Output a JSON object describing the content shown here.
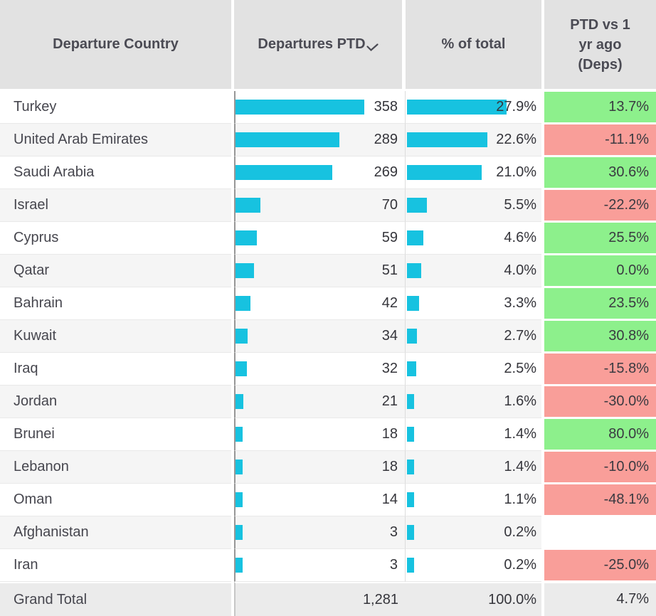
{
  "colors": {
    "bar": "#17C2E0",
    "positive": "#8DF08C",
    "negative": "#F99E99",
    "header_bg": "#E2E2E2",
    "row_alt_bg": "#F5F5F5",
    "grand_total_bg": "#EBEBEB",
    "axis_line": "#979797"
  },
  "table": {
    "columns": [
      {
        "label": "Departure Country"
      },
      {
        "label": "Departures PTD",
        "sort_indicator": "descending"
      },
      {
        "label": "% of total"
      },
      {
        "label": "PTD vs 1\nyr ago\n(Deps)"
      }
    ],
    "rows": [
      {
        "country": "Turkey",
        "departures": "358",
        "departures_value": 358,
        "pct_of_total": "27.9%",
        "pct_value": 27.9,
        "vs_1yr": "13.7%",
        "trend": "positive"
      },
      {
        "country": "United Arab Emirates",
        "departures": "289",
        "departures_value": 289,
        "pct_of_total": "22.6%",
        "pct_value": 22.6,
        "vs_1yr": "-11.1%",
        "trend": "negative"
      },
      {
        "country": "Saudi Arabia",
        "departures": "269",
        "departures_value": 269,
        "pct_of_total": "21.0%",
        "pct_value": 21.0,
        "vs_1yr": "30.6%",
        "trend": "positive"
      },
      {
        "country": "Israel",
        "departures": "70",
        "departures_value": 70,
        "pct_of_total": "5.5%",
        "pct_value": 5.5,
        "vs_1yr": "-22.2%",
        "trend": "negative"
      },
      {
        "country": "Cyprus",
        "departures": "59",
        "departures_value": 59,
        "pct_of_total": "4.6%",
        "pct_value": 4.6,
        "vs_1yr": "25.5%",
        "trend": "positive"
      },
      {
        "country": "Qatar",
        "departures": "51",
        "departures_value": 51,
        "pct_of_total": "4.0%",
        "pct_value": 4.0,
        "vs_1yr": "0.0%",
        "trend": "positive"
      },
      {
        "country": "Bahrain",
        "departures": "42",
        "departures_value": 42,
        "pct_of_total": "3.3%",
        "pct_value": 3.3,
        "vs_1yr": "23.5%",
        "trend": "positive"
      },
      {
        "country": "Kuwait",
        "departures": "34",
        "departures_value": 34,
        "pct_of_total": "2.7%",
        "pct_value": 2.7,
        "vs_1yr": "30.8%",
        "trend": "positive"
      },
      {
        "country": "Iraq",
        "departures": "32",
        "departures_value": 32,
        "pct_of_total": "2.5%",
        "pct_value": 2.5,
        "vs_1yr": "-15.8%",
        "trend": "negative"
      },
      {
        "country": "Jordan",
        "departures": "21",
        "departures_value": 21,
        "pct_of_total": "1.6%",
        "pct_value": 1.6,
        "vs_1yr": "-30.0%",
        "trend": "negative"
      },
      {
        "country": "Brunei",
        "departures": "18",
        "departures_value": 18,
        "pct_of_total": "1.4%",
        "pct_value": 1.4,
        "vs_1yr": "80.0%",
        "trend": "positive"
      },
      {
        "country": "Lebanon",
        "departures": "18",
        "departures_value": 18,
        "pct_of_total": "1.4%",
        "pct_value": 1.4,
        "vs_1yr": "-10.0%",
        "trend": "negative"
      },
      {
        "country": "Oman",
        "departures": "14",
        "departures_value": 14,
        "pct_of_total": "1.1%",
        "pct_value": 1.1,
        "vs_1yr": "-48.1%",
        "trend": "negative"
      },
      {
        "country": "Afghanistan",
        "departures": "3",
        "departures_value": 3,
        "pct_of_total": "0.2%",
        "pct_value": 0.2,
        "vs_1yr": "",
        "trend": "none"
      },
      {
        "country": "Iran",
        "departures": "3",
        "departures_value": 3,
        "pct_of_total": "0.2%",
        "pct_value": 0.2,
        "vs_1yr": "-25.0%",
        "trend": "negative"
      }
    ],
    "grand_total": {
      "label": "Grand Total",
      "departures": "1,281",
      "pct_of_total": "100.0%",
      "vs_1yr": "4.7%"
    }
  },
  "chart_data": {
    "type": "table",
    "title": "Departures by Departure Country",
    "columns": [
      "Departure Country",
      "Departures PTD",
      "% of total",
      "PTD vs 1 yr ago (Deps)"
    ],
    "categories": [
      "Turkey",
      "United Arab Emirates",
      "Saudi Arabia",
      "Israel",
      "Cyprus",
      "Qatar",
      "Bahrain",
      "Kuwait",
      "Iraq",
      "Jordan",
      "Brunei",
      "Lebanon",
      "Oman",
      "Afghanistan",
      "Iran"
    ],
    "series": [
      {
        "name": "Departures PTD",
        "display": "bar+value",
        "values": [
          358,
          289,
          269,
          70,
          59,
          51,
          42,
          34,
          32,
          21,
          18,
          18,
          14,
          3,
          3
        ]
      },
      {
        "name": "% of total",
        "display": "bar+value",
        "values": [
          27.9,
          22.6,
          21.0,
          5.5,
          4.6,
          4.0,
          3.3,
          2.7,
          2.5,
          1.6,
          1.4,
          1.4,
          1.1,
          0.2,
          0.2
        ]
      },
      {
        "name": "PTD vs 1 yr ago (Deps)",
        "display": "colored-cell",
        "values": [
          13.7,
          -11.1,
          30.6,
          -22.2,
          25.5,
          0.0,
          23.5,
          30.8,
          -15.8,
          -30.0,
          80.0,
          -10.0,
          -48.1,
          null,
          -25.0
        ]
      }
    ],
    "grand_total": {
      "Departures PTD": 1281,
      "% of total": 100.0,
      "PTD vs 1 yr ago (Deps)": 4.7
    },
    "sort": {
      "column": "Departures PTD",
      "direction": "descending"
    },
    "layout": {
      "bar_color": "#17C2E0",
      "positive_cell_color": "#8DF08C",
      "negative_cell_color": "#F99E99",
      "legend": false,
      "grid": false
    }
  }
}
